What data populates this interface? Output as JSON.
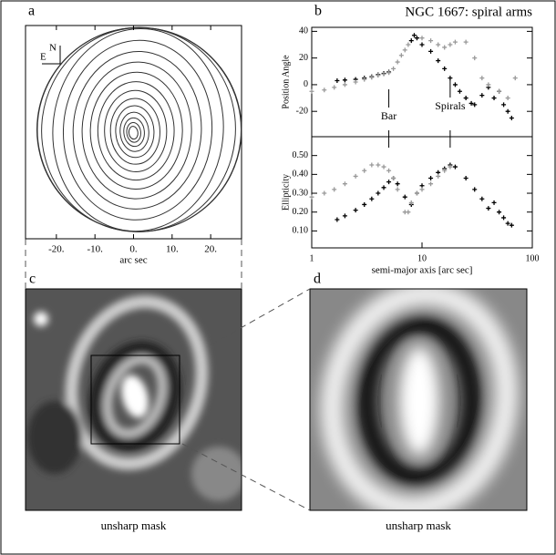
{
  "chart_data": [
    {
      "type": "contour",
      "panel": "a",
      "xlabel": "arc sec",
      "compass": [
        "N",
        "E"
      ],
      "xlim": [
        -28,
        28
      ],
      "xticks": [
        {
          "value": -20,
          "label": "-20."
        },
        {
          "value": -10,
          "label": "-10."
        },
        {
          "value": 0,
          "label": "0."
        },
        {
          "value": 10,
          "label": "10."
        },
        {
          "value": 20,
          "label": "20."
        }
      ]
    },
    {
      "type": "scatter",
      "panel": "b",
      "title": "NGC 1667: spiral arms",
      "ylabel": "Position Angle",
      "log_x": true,
      "xlim": [
        1,
        100
      ],
      "ylim": [
        -39,
        43
      ],
      "yticks": [
        -20,
        0,
        20,
        40
      ],
      "annotations": [
        "Bar",
        "Spirals"
      ],
      "series": [
        {
          "color": "#000000",
          "x": [
            1.7,
            2,
            2.5,
            3,
            3.5,
            4,
            4.5,
            5,
            8,
            8.5,
            9,
            10,
            12,
            14,
            16,
            18,
            20,
            22,
            25,
            28,
            30,
            35,
            40,
            45,
            50,
            55,
            60,
            65
          ],
          "values": [
            3,
            3.5,
            4,
            5,
            6,
            7.5,
            8.5,
            9.5,
            33,
            37,
            35,
            30,
            25,
            18,
            12,
            5,
            0,
            -5,
            -10,
            -14,
            -15,
            -8,
            -2,
            -10,
            -5,
            -15,
            -20,
            -25
          ]
        },
        {
          "color": "#999999",
          "x": [
            1,
            1.3,
            1.6,
            2,
            2.5,
            3,
            3.5,
            4,
            4.5,
            5,
            5.5,
            6,
            6.5,
            7,
            7.5,
            10,
            12,
            14,
            16,
            18,
            20,
            25,
            30,
            35,
            40,
            50,
            60,
            70
          ],
          "values": [
            -5,
            -4,
            -2,
            0,
            2,
            4,
            5.5,
            7,
            8,
            9,
            12,
            17,
            22,
            26,
            30,
            35,
            33,
            30,
            28,
            30,
            32,
            32,
            20,
            5,
            0,
            -5,
            -10,
            5
          ]
        }
      ]
    },
    {
      "type": "scatter",
      "ylabel": "Ellipticity",
      "xlabel": "semi-major axis [arc sec]",
      "log_x": true,
      "xlim": [
        1,
        100
      ],
      "xticks": [
        1,
        10,
        100
      ],
      "ylim": [
        0.01,
        0.6
      ],
      "yticks": [
        {
          "value": 0.1,
          "label": "0.10"
        },
        {
          "value": 0.2,
          "label": "0.20"
        },
        {
          "value": 0.3,
          "label": "0.30"
        },
        {
          "value": 0.4,
          "label": "0.40"
        },
        {
          "value": 0.5,
          "label": "0.50"
        }
      ],
      "series": [
        {
          "color": "#000000",
          "x": [
            1.7,
            2,
            2.5,
            3,
            3.5,
            4,
            4.5,
            5,
            5.5,
            6,
            7,
            8,
            9,
            10,
            12,
            14,
            16,
            18,
            20,
            25,
            30,
            35,
            40,
            45,
            50,
            55,
            60,
            65
          ],
          "values": [
            0.16,
            0.18,
            0.21,
            0.24,
            0.27,
            0.3,
            0.33,
            0.36,
            0.38,
            0.35,
            0.28,
            0.24,
            0.3,
            0.34,
            0.38,
            0.41,
            0.43,
            0.45,
            0.44,
            0.38,
            0.32,
            0.27,
            0.22,
            0.25,
            0.2,
            0.17,
            0.14,
            0.13
          ]
        },
        {
          "color": "#999999",
          "x": [
            1,
            1.3,
            1.6,
            2,
            2.5,
            3,
            3.5,
            4,
            4.5,
            5,
            5.5,
            6,
            7,
            7.5,
            8,
            9,
            10,
            12,
            14,
            16,
            18
          ],
          "values": [
            0.28,
            0.3,
            0.32,
            0.35,
            0.39,
            0.42,
            0.45,
            0.45,
            0.44,
            0.42,
            0.38,
            0.32,
            0.2,
            0.2,
            0.25,
            0.3,
            0.32,
            0.35,
            0.39,
            0.42,
            0.44
          ]
        }
      ]
    },
    {
      "type": "image",
      "panel": "c",
      "caption": "unsharp mask"
    },
    {
      "type": "image",
      "panel": "d",
      "caption": "unsharp mask"
    }
  ]
}
